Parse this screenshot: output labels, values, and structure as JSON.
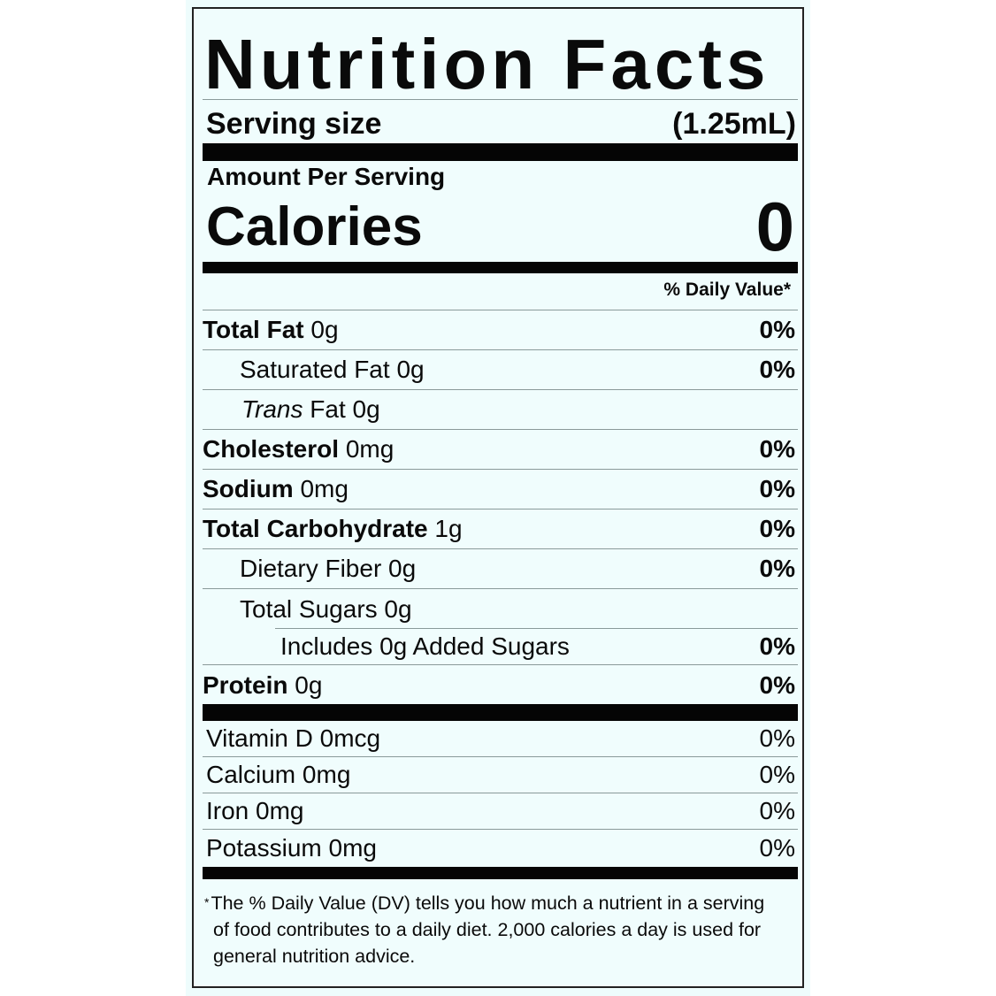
{
  "title": "Nutrition Facts",
  "serving": {
    "label": "Serving size",
    "value": "(1.25mL)"
  },
  "amount_per_serving": "Amount Per Serving",
  "calories": {
    "label": "Calories",
    "value": "0"
  },
  "daily_value_header": "% Daily Value*",
  "nutrients": [
    {
      "name": "Total Fat",
      "amount": "0g",
      "dv": "0%"
    },
    {
      "name": "Saturated Fat",
      "amount": "0g",
      "dv": "0%"
    },
    {
      "name_italic": "Trans",
      "name": "Fat",
      "amount": "0g",
      "dv": ""
    },
    {
      "name": "Cholesterol",
      "amount": "0mg",
      "dv": "0%"
    },
    {
      "name": "Sodium",
      "amount": "0mg",
      "dv": "0%"
    },
    {
      "name": "Total Carbohydrate",
      "amount": "1g",
      "dv": "0%"
    },
    {
      "name": "Dietary Fiber",
      "amount": "0g",
      "dv": "0%"
    },
    {
      "name": "Total Sugars",
      "amount": "0g",
      "dv": ""
    },
    {
      "name": "Includes 0g Added Sugars",
      "amount": "",
      "dv": "0%"
    },
    {
      "name": "Protein",
      "amount": "0g",
      "dv": "0%"
    }
  ],
  "vitamins": [
    {
      "name": "Vitamin D",
      "amount": "0mcg",
      "dv": "0%"
    },
    {
      "name": "Calcium",
      "amount": "0mg",
      "dv": "0%"
    },
    {
      "name": "Iron",
      "amount": "0mg",
      "dv": "0%"
    },
    {
      "name": "Potassium",
      "amount": "0mg",
      "dv": "0%"
    }
  ],
  "footnote": {
    "star": "*",
    "text": "The % Daily Value (DV) tells you how much a nutrient in a serving of food contributes to a daily diet. 2,000 calories a day is used for general nutrition advice."
  },
  "colors": {
    "background": "#f0fdfd",
    "ink": "#0a0a0a"
  }
}
